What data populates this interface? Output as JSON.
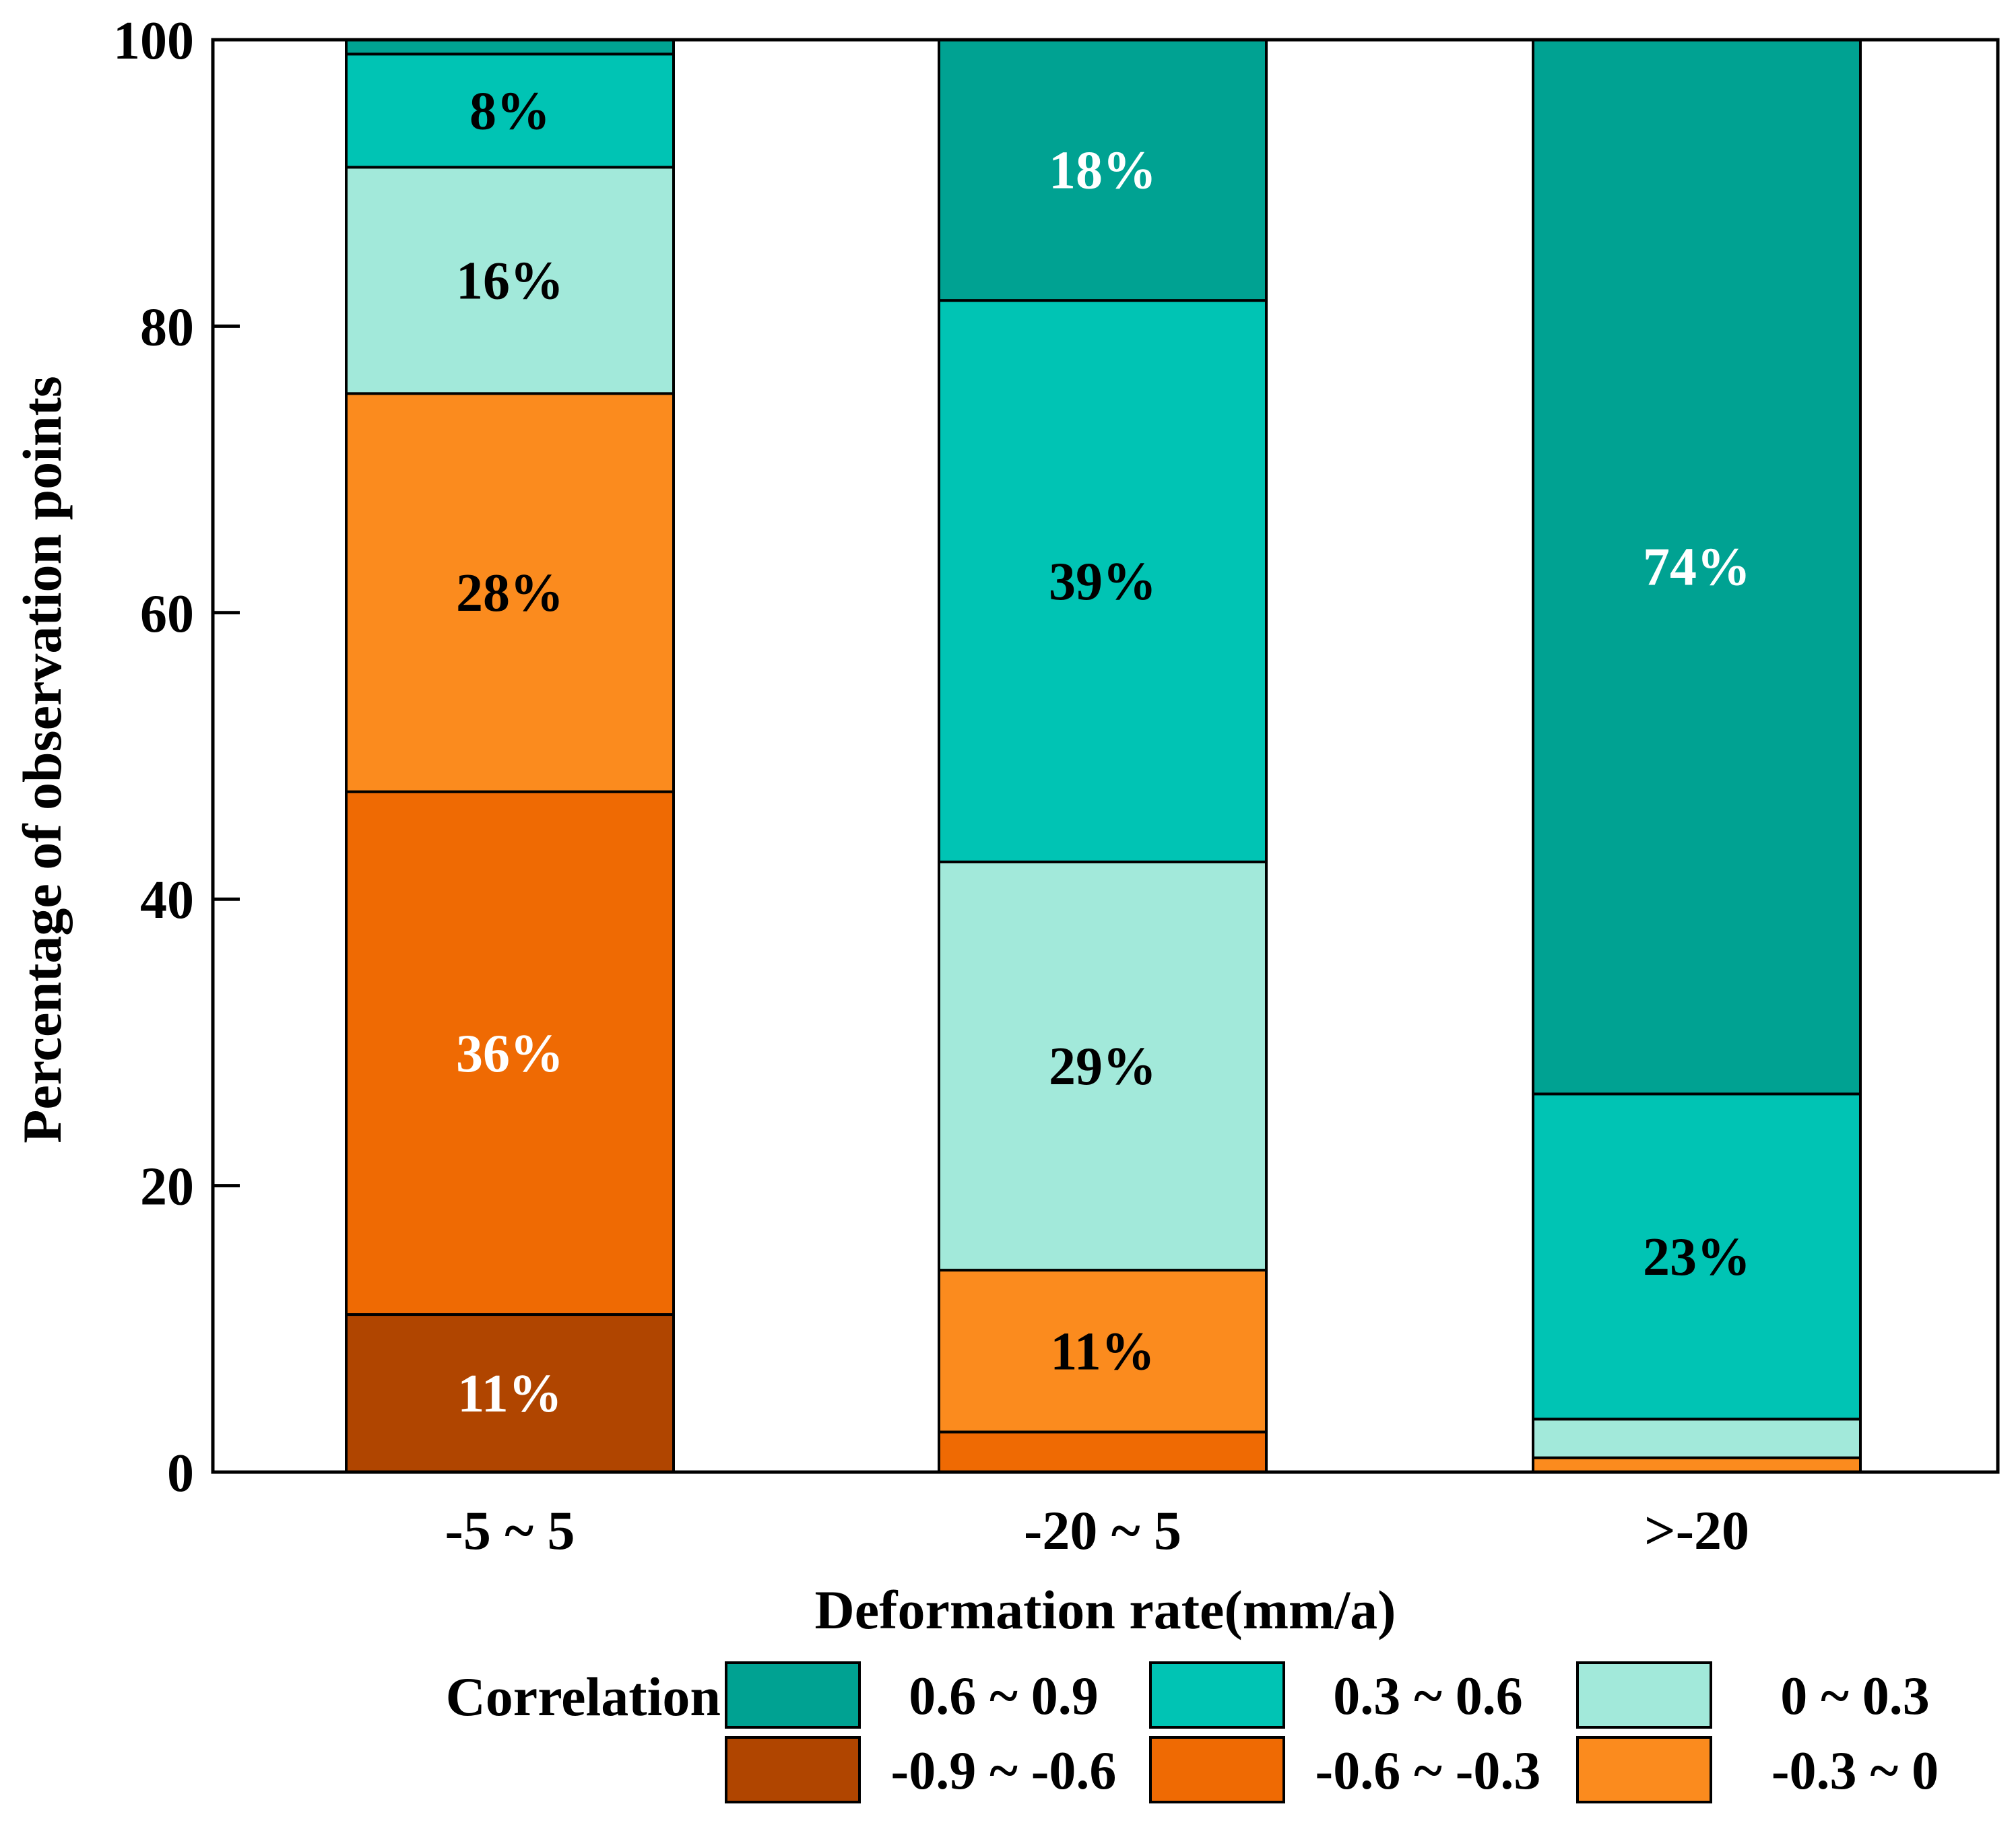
{
  "chart_data": {
    "type": "bar",
    "stacked": true,
    "xlabel": "Deformation rate(mm/a)",
    "ylabel": "Percentage of observation points",
    "ylim": [
      0,
      100
    ],
    "yticks": [
      "0",
      "20",
      "40",
      "60",
      "80",
      "100"
    ],
    "categories": [
      "-5 ~ 5",
      "-20 ~ 5",
      ">-20"
    ],
    "legend_title": "Correlation",
    "series": [
      {
        "name": "-0.9 ~ -0.6",
        "color": "#b04500",
        "values": [
          11,
          0,
          0
        ],
        "labels": [
          "11%",
          "",
          ""
        ],
        "label_colors": [
          "#ffffff",
          "",
          ""
        ]
      },
      {
        "name": "-0.6 ~ -0.3",
        "color": "#ef6a03",
        "values": [
          36.5,
          2.8,
          0
        ],
        "labels": [
          "36%",
          "",
          ""
        ],
        "label_colors": [
          "#ffffff",
          "",
          ""
        ]
      },
      {
        "name": "-0.3 ~ 0",
        "color": "#fb8b1e",
        "values": [
          27.8,
          11.3,
          1
        ],
        "labels": [
          "28%",
          "11%",
          ""
        ],
        "label_colors": [
          "#000000",
          "#000000",
          ""
        ]
      },
      {
        "name": "0 ~ 0.3",
        "color": "#a2e9da",
        "values": [
          15.8,
          28.5,
          2.7
        ],
        "labels": [
          "16%",
          "29%",
          ""
        ],
        "label_colors": [
          "#000000",
          "#000000",
          ""
        ]
      },
      {
        "name": "0.3 ~ 0.6",
        "color": "#00c4b4",
        "values": [
          7.9,
          39.2,
          22.7
        ],
        "labels": [
          "8%",
          "39%",
          "23%"
        ],
        "label_colors": [
          "#000000",
          "#000000",
          "#000000"
        ]
      },
      {
        "name": "0.6 ~ 0.9",
        "color": "#00a292",
        "values": [
          1,
          18.2,
          73.6
        ],
        "labels": [
          "",
          "18%",
          "74%"
        ],
        "label_colors": [
          "",
          "#ffffff",
          "#ffffff"
        ]
      }
    ],
    "legend_rows": [
      [
        "0.6 ~ 0.9",
        "0.3 ~ 0.6",
        "0 ~ 0.3"
      ],
      [
        "-0.9 ~ -0.6",
        "-0.6 ~ -0.3",
        "-0.3 ~ 0"
      ]
    ]
  }
}
